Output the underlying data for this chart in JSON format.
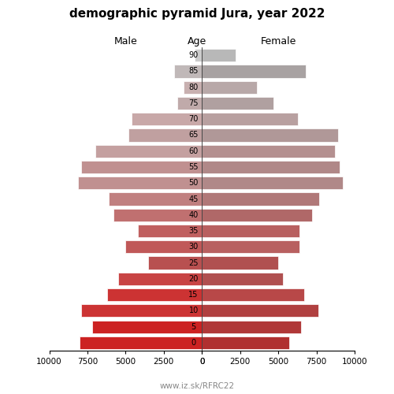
{
  "title": "demographic pyramid Jura, year 2022",
  "label_male": "Male",
  "label_age": "Age",
  "label_female": "Female",
  "footer": "www.iz.sk/RFRC22",
  "age_labels": [
    "0",
    "5",
    "10",
    "15",
    "20",
    "25",
    "30",
    "35",
    "40",
    "45",
    "50",
    "55",
    "60",
    "65",
    "70",
    "75",
    "80",
    "85",
    "90"
  ],
  "male": [
    8000,
    7200,
    7900,
    6200,
    5500,
    3500,
    5000,
    4200,
    5800,
    6100,
    8100,
    7900,
    7000,
    4800,
    4600,
    1600,
    1200,
    1800,
    500
  ],
  "female": [
    5700,
    6500,
    7600,
    6700,
    5300,
    5000,
    6400,
    6400,
    7200,
    7700,
    9200,
    9000,
    8700,
    8900,
    6300,
    4700,
    3600,
    6800,
    2200
  ],
  "male_colors": [
    "#cc2222",
    "#cc2222",
    "#cc3333",
    "#cc3333",
    "#c84444",
    "#b85050",
    "#c05858",
    "#c06060",
    "#c07070",
    "#c08080",
    "#c09090",
    "#c09090",
    "#c4a0a0",
    "#c0a0a0",
    "#c8a8a8",
    "#c0aaaa",
    "#c8b0b0",
    "#c0b8b8",
    "#cccccc"
  ],
  "female_colors": [
    "#b03030",
    "#b03838",
    "#b04040",
    "#b84848",
    "#b05050",
    "#b05050",
    "#b86060",
    "#b86060",
    "#b06868",
    "#b07878",
    "#b08888",
    "#b08888",
    "#b49090",
    "#b09898",
    "#b8a0a0",
    "#b0a0a0",
    "#b8a8a8",
    "#a8a2a2",
    "#b8b8b8"
  ],
  "xlim": 10000,
  "bg_color": "#ffffff",
  "tick_vals": [
    10000,
    7500,
    5000,
    2500,
    0
  ],
  "tick_labels_left": [
    "10000",
    "7500",
    "5000",
    "2500",
    "0"
  ],
  "tick_labels_right": [
    "0",
    "2500",
    "5000",
    "7500",
    "10000"
  ]
}
